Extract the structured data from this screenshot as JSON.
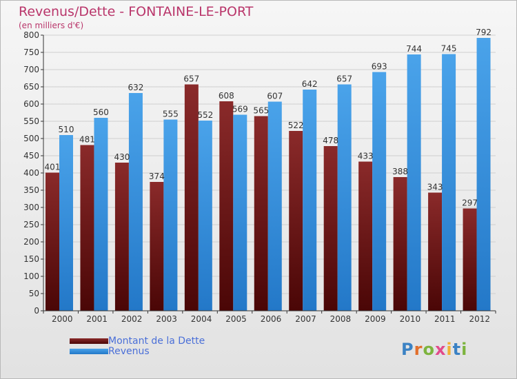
{
  "title": "Revenus/Dette - FONTAINE-LE-PORT",
  "subtitle": "(en milliers d'€)",
  "logo": {
    "text": "Proxiti",
    "letter_colors": [
      "#3b82c4",
      "#e26f2b",
      "#7db43e",
      "#e24b8b",
      "#f2b134",
      "#3b82c4",
      "#7db43e"
    ]
  },
  "colors": {
    "title": "#b9356a",
    "dette": "#7a1c1c",
    "revenus": "#3a8fdc",
    "grid": "#cfcfcf",
    "axis": "#333333",
    "legend_text": "#4a6fd8"
  },
  "chart_data": {
    "type": "bar",
    "categories": [
      "2000",
      "2001",
      "2002",
      "2003",
      "2004",
      "2005",
      "2006",
      "2007",
      "2008",
      "2009",
      "2010",
      "2011",
      "2012"
    ],
    "series": [
      {
        "name": "Montant de la Dette",
        "values": [
          401,
          481,
          430,
          374,
          657,
          608,
          565,
          522,
          478,
          433,
          388,
          343,
          297
        ]
      },
      {
        "name": "Revenus",
        "values": [
          510,
          560,
          632,
          555,
          552,
          569,
          607,
          642,
          657,
          693,
          744,
          745,
          792
        ]
      }
    ],
    "ylim": [
      0,
      800
    ],
    "yticks": [
      0,
      50,
      100,
      150,
      200,
      250,
      300,
      350,
      400,
      450,
      500,
      550,
      600,
      650,
      700,
      750,
      800
    ],
    "grid": true,
    "legend": "bottom-left",
    "xlabel": "",
    "ylabel": ""
  }
}
